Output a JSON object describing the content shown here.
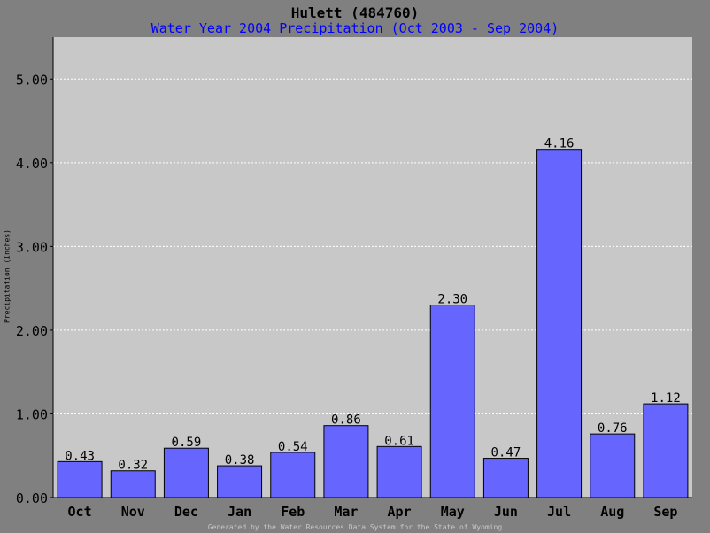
{
  "chart_data": {
    "type": "bar",
    "title": "Hulett (484760)",
    "subtitle": "Water Year 2004 Precipitation (Oct 2003 - Sep 2004)",
    "ylabel": "Precipitation (Inches)",
    "xlabel": "",
    "categories": [
      "Oct",
      "Nov",
      "Dec",
      "Jan",
      "Feb",
      "Mar",
      "Apr",
      "May",
      "Jun",
      "Jul",
      "Aug",
      "Sep"
    ],
    "values": [
      0.43,
      0.32,
      0.59,
      0.38,
      0.54,
      0.86,
      0.61,
      2.3,
      0.47,
      4.16,
      0.76,
      1.12
    ],
    "value_labels": [
      "0.43",
      "0.32",
      "0.59",
      "0.38",
      "0.54",
      "0.86",
      "0.61",
      "2.30",
      "0.47",
      "4.16",
      "0.76",
      "1.12"
    ],
    "ylim": [
      0,
      5.5
    ],
    "yticks": [
      0,
      1,
      2,
      3,
      4,
      5
    ],
    "ytick_labels": [
      "0.00",
      "1.00",
      "2.00",
      "3.00",
      "4.00",
      "5.00"
    ],
    "grid": true,
    "colors": {
      "bar": "#6666ff",
      "plot_background": "#c8c8c8",
      "page_background": "#808080",
      "title": "#000000",
      "subtitle": "#0000ff"
    }
  },
  "footer": "Generated by the Water Resources Data System for the State of Wyoming"
}
